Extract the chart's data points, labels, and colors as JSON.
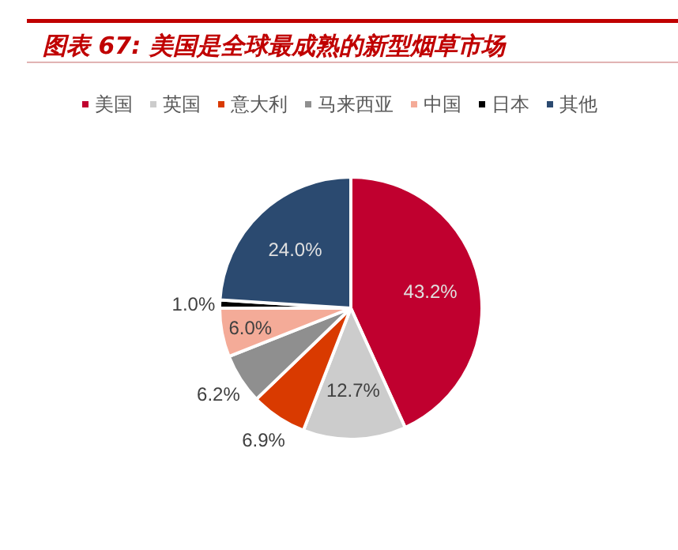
{
  "chart_data": {
    "type": "pie",
    "title": "图表 67: 美国是全球最成熟的新型烟草市场",
    "categories": [
      "美国",
      "英国",
      "意大利",
      "马来西亚",
      "中国",
      "日本",
      "其他"
    ],
    "values": [
      43.2,
      12.7,
      6.9,
      6.2,
      6.0,
      1.0,
      24.0
    ],
    "value_labels": [
      "43.2%",
      "12.7%",
      "6.9%",
      "6.2%",
      "6.0%",
      "1.0%",
      "24.0%"
    ],
    "colors": [
      "#c0002f",
      "#cccccc",
      "#d93a00",
      "#8f8f8f",
      "#f4ab98",
      "#000000",
      "#2b4a70"
    ],
    "legend": "top"
  }
}
